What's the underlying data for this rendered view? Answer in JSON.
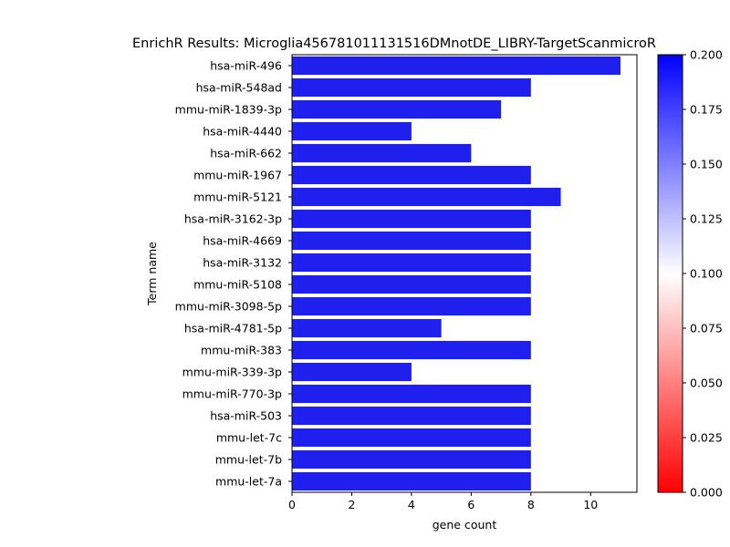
{
  "chart_data": {
    "type": "bar",
    "orientation": "horizontal",
    "title": "EnrichR Results: Microglia456781011131516DMnotDE_LIBRY-TargetScanmicroR",
    "xlabel": "gene count",
    "ylabel": "Term name",
    "xlim": [
      0,
      11.55
    ],
    "xticks": [
      0,
      2,
      4,
      6,
      8,
      10
    ],
    "categories": [
      "hsa-miR-496",
      "hsa-miR-548ad",
      "mmu-miR-1839-3p",
      "hsa-miR-4440",
      "hsa-miR-662",
      "mmu-miR-1967",
      "mmu-miR-5121",
      "hsa-miR-3162-3p",
      "hsa-miR-4669",
      "hsa-miR-3132",
      "mmu-miR-5108",
      "mmu-miR-3098-5p",
      "hsa-miR-4781-5p",
      "mmu-miR-383",
      "mmu-miR-339-3p",
      "mmu-miR-770-3p",
      "hsa-miR-503",
      "mmu-let-7c",
      "mmu-let-7b",
      "mmu-let-7a"
    ],
    "values": [
      11,
      8,
      7,
      4,
      6,
      8,
      9,
      8,
      8,
      8,
      8,
      8,
      5,
      8,
      4,
      8,
      8,
      8,
      8,
      8
    ],
    "bar_color": "#1f1fee",
    "grid": false,
    "colorbar": {
      "range": [
        0.0,
        0.2
      ],
      "ticks": [
        "0.000",
        "0.025",
        "0.050",
        "0.075",
        "0.100",
        "0.125",
        "0.150",
        "0.175",
        "0.200"
      ],
      "colormap": "bwr_r",
      "colors": {
        "low": "#ff0000",
        "mid": "#ffffff",
        "high": "#0000ff"
      }
    }
  }
}
